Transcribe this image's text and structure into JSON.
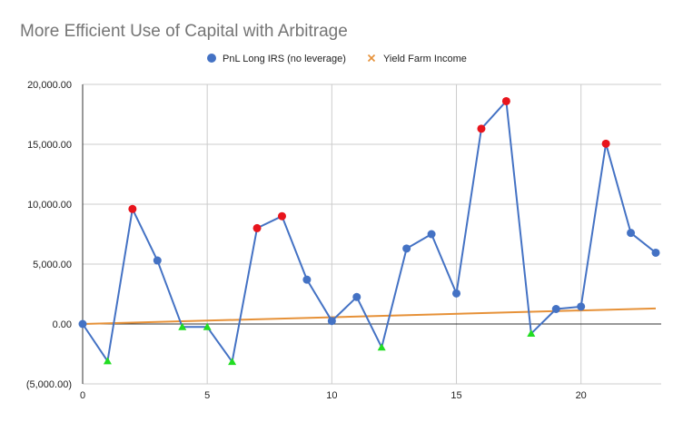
{
  "chart_data": {
    "type": "line",
    "title": "More Efficient Use of Capital with Arbitrage",
    "xlabel": "",
    "ylabel": "",
    "xlim": [
      0,
      23
    ],
    "ylim": [
      -5000,
      20000
    ],
    "x_ticks": [
      0,
      5,
      10,
      15,
      20
    ],
    "x_tick_labels": [
      "0",
      "5",
      "10",
      "15",
      "20"
    ],
    "y_ticks": [
      -5000,
      0,
      5000,
      10000,
      15000,
      20000
    ],
    "y_tick_labels": [
      "(5,000.00)",
      "0.00",
      "5,000.00",
      "10,000.00",
      "15,000.00",
      "20,000.00"
    ],
    "grid": true,
    "legend_position": "top",
    "series": [
      {
        "name": "PnL Long IRS (no leverage)",
        "color": "#4472c4",
        "x": [
          0,
          1,
          2,
          3,
          4,
          5,
          6,
          7,
          8,
          9,
          10,
          11,
          12,
          13,
          14,
          15,
          16,
          17,
          18,
          19,
          20,
          21,
          22,
          23
        ],
        "values": [
          0,
          -3100,
          9600,
          5300,
          -250,
          -250,
          -3150,
          8000,
          9000,
          3700,
          250,
          2250,
          -1950,
          6300,
          7500,
          2550,
          16300,
          18600,
          -800,
          1250,
          1450,
          15050,
          7600,
          5950
        ],
        "marker_types": [
          "circle",
          "triangle",
          "red",
          "circle",
          "triangle",
          "triangle",
          "triangle",
          "red",
          "red",
          "circle",
          "circle",
          "circle",
          "triangle",
          "circle",
          "circle",
          "circle",
          "red",
          "red",
          "triangle",
          "circle",
          "circle",
          "red",
          "circle",
          "circle"
        ]
      },
      {
        "name": "Yield Farm Income",
        "color": "#e69138",
        "x": [
          0,
          23
        ],
        "values": [
          0,
          1300
        ]
      }
    ],
    "marker_colors": {
      "circle": "#4472c4",
      "red": "#e8141c",
      "triangle": "#22dd22"
    }
  }
}
